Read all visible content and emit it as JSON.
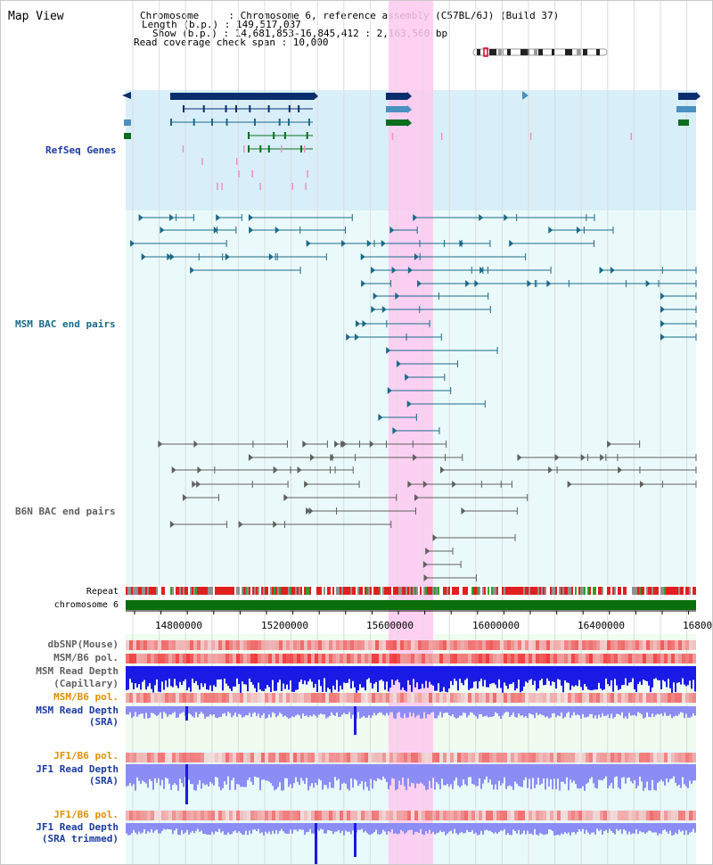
{
  "panel": {
    "title": "Map View",
    "info_lines": [
      "Chromosome     : Chromosome 6, reference assembly (C57BL/6J) (Build 37)",
      "Length (b.p.) : 149,517,037",
      "Show (b.p.) : 14,681,853-16,845,412 : 2,163,560 bp",
      "Read coverage check span : 10,000"
    ]
  },
  "tracks": {
    "refseq": "RefSeq Genes",
    "msm_bac": "MSM BAC end pairs",
    "b6n_bac": "B6N BAC end pairs",
    "repeat": "Repeat",
    "chromosome": "chromosome 6",
    "dbsnp": "dbSNP(Mouse)",
    "msm_b6_pol_1": "MSM/B6 pol.",
    "msm_depth_cap_1": "MSM Read Depth",
    "msm_depth_cap_2": "(Capillary)",
    "msm_b6_pol_2": "MSM/B6 pol.",
    "msm_depth_sra_1": "MSM Read Depth",
    "msm_depth_sra_2": "(SRA)",
    "jf1_b6_pol_1": "JF1/B6 pol.",
    "jf1_depth_1": "JF1 Read Depth",
    "jf1_depth_2": "(SRA)",
    "jf1_b6_pol_2": "JF1/B6 pol.",
    "jf1_trim_1": "JF1 Read Depth",
    "jf1_trim_2": "(SRA trimmed)"
  },
  "axis": {
    "ticks": [
      "14800000",
      "15200000",
      "15600000",
      "16000000",
      "16400000",
      "16800"
    ]
  },
  "colors": {
    "refseq_bg": "#d8eef8",
    "pair_bg": "#eafafa",
    "highlight": "#ffc8f0",
    "gene_dark": "#0a2d6e",
    "gene_mid": "#4a90c0",
    "gene_green": "#0a6e1e",
    "msm_pair": "#1c6a8a",
    "b6n_pair": "#606060",
    "depth_blue": "#1a1ae6",
    "depth_light": "#8c8cf5",
    "pol_red": "#e84040",
    "chrom_green": "#0a6e0a",
    "label_blue": "#1a3aa0",
    "label_teal": "#1a6a8a",
    "label_orange": "#e09000"
  }
}
